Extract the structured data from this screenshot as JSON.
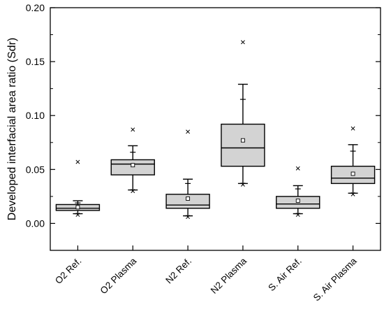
{
  "chart_data": {
    "type": "box",
    "title": "",
    "xlabel": "",
    "ylabel": "Developed interfacial area ratio (Sdr)",
    "ylim": [
      -0.025,
      0.2
    ],
    "yticks": [
      0.0,
      0.05,
      0.1,
      0.15,
      0.2
    ],
    "ytick_labels": [
      "0.00",
      "0.05",
      "0.10",
      "0.15",
      "0.20"
    ],
    "grid": false,
    "legend": "none",
    "box_color": "#d3d3d3",
    "line_color": "#000000",
    "categories": [
      "O2 Ref.",
      "O2 Plasma",
      "N2 Ref.",
      "N2 Plasma",
      "S. Air Ref.",
      "S. Air Plasma"
    ],
    "boxes": [
      {
        "category": "O2 Ref.",
        "min": 0.008,
        "whisker_low": 0.009,
        "q1": 0.012,
        "median": 0.014,
        "q3": 0.0175,
        "whisker_high": 0.021,
        "max": 0.057,
        "mean": 0.015,
        "caps": [
          0.009,
          0.019
        ]
      },
      {
        "category": "O2 Plasma",
        "min": 0.03,
        "whisker_low": 0.031,
        "q1": 0.045,
        "median": 0.055,
        "q3": 0.059,
        "whisker_high": 0.072,
        "max": 0.087,
        "mean": 0.054,
        "caps": [
          0.031,
          0.066
        ]
      },
      {
        "category": "N2 Ref.",
        "min": 0.006,
        "whisker_low": 0.007,
        "q1": 0.014,
        "median": 0.017,
        "q3": 0.027,
        "whisker_high": 0.041,
        "max": 0.085,
        "mean": 0.023,
        "caps": [
          0.007,
          0.037
        ]
      },
      {
        "category": "N2 Plasma",
        "min": 0.036,
        "whisker_low": 0.037,
        "q1": 0.053,
        "median": 0.07,
        "q3": 0.092,
        "whisker_high": 0.129,
        "max": 0.168,
        "mean": 0.077,
        "caps": [
          0.037,
          0.115
        ]
      },
      {
        "category": "S. Air Ref.",
        "min": 0.008,
        "whisker_low": 0.009,
        "q1": 0.014,
        "median": 0.018,
        "q3": 0.025,
        "whisker_high": 0.035,
        "max": 0.051,
        "mean": 0.021,
        "caps": [
          0.009,
          0.032
        ]
      },
      {
        "category": "S. Air Plasma",
        "min": 0.027,
        "whisker_low": 0.028,
        "q1": 0.037,
        "median": 0.042,
        "q3": 0.053,
        "whisker_high": 0.073,
        "max": 0.088,
        "mean": 0.046,
        "caps": [
          0.028,
          0.067
        ]
      }
    ]
  }
}
